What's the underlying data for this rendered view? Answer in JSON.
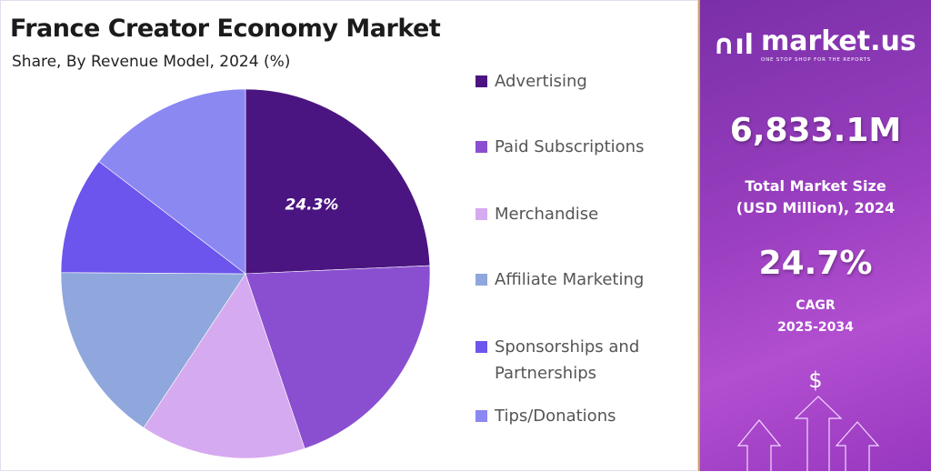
{
  "header": {
    "title": "France Creator Economy Market",
    "subtitle": "Share, By Revenue Model, 2024 (%)"
  },
  "chart_data": {
    "type": "pie",
    "title": "France Creator Economy Market",
    "subtitle": "Share, By Revenue Model, 2024 (%)",
    "categories": [
      "Advertising",
      "Paid Subscriptions",
      "Merchandise",
      "Affiliate Marketing",
      "Sponsorships and Partnerships",
      "Tips/Donations"
    ],
    "values": [
      24.3,
      20.5,
      14.5,
      15.8,
      10.3,
      14.6
    ],
    "colors": [
      "#4a1580",
      "#8a4fd0",
      "#d6aaf0",
      "#8fa7dc",
      "#6b55ec",
      "#8b88f2"
    ],
    "data_labels": [
      {
        "category": "Advertising",
        "text": "24.3%"
      }
    ],
    "legend": "right",
    "legend_lines": [
      [
        "Advertising"
      ],
      [
        "Paid Subscriptions"
      ],
      [
        "Merchandise"
      ],
      [
        "Affiliate Marketing"
      ],
      [
        "Sponsorships and",
        "Partnerships"
      ],
      [
        "Tips/Donations"
      ]
    ]
  },
  "panel": {
    "brand": "market.us",
    "tagline": "ONE STOP SHOP FOR THE REPORTS",
    "market_size": "6,833.1M",
    "market_size_label_1": "Total Market Size",
    "market_size_label_2": "(USD Million), 2024",
    "cagr": "24.7%",
    "cagr_label": "CAGR",
    "cagr_period": "2025-2034",
    "dollar": "$"
  }
}
